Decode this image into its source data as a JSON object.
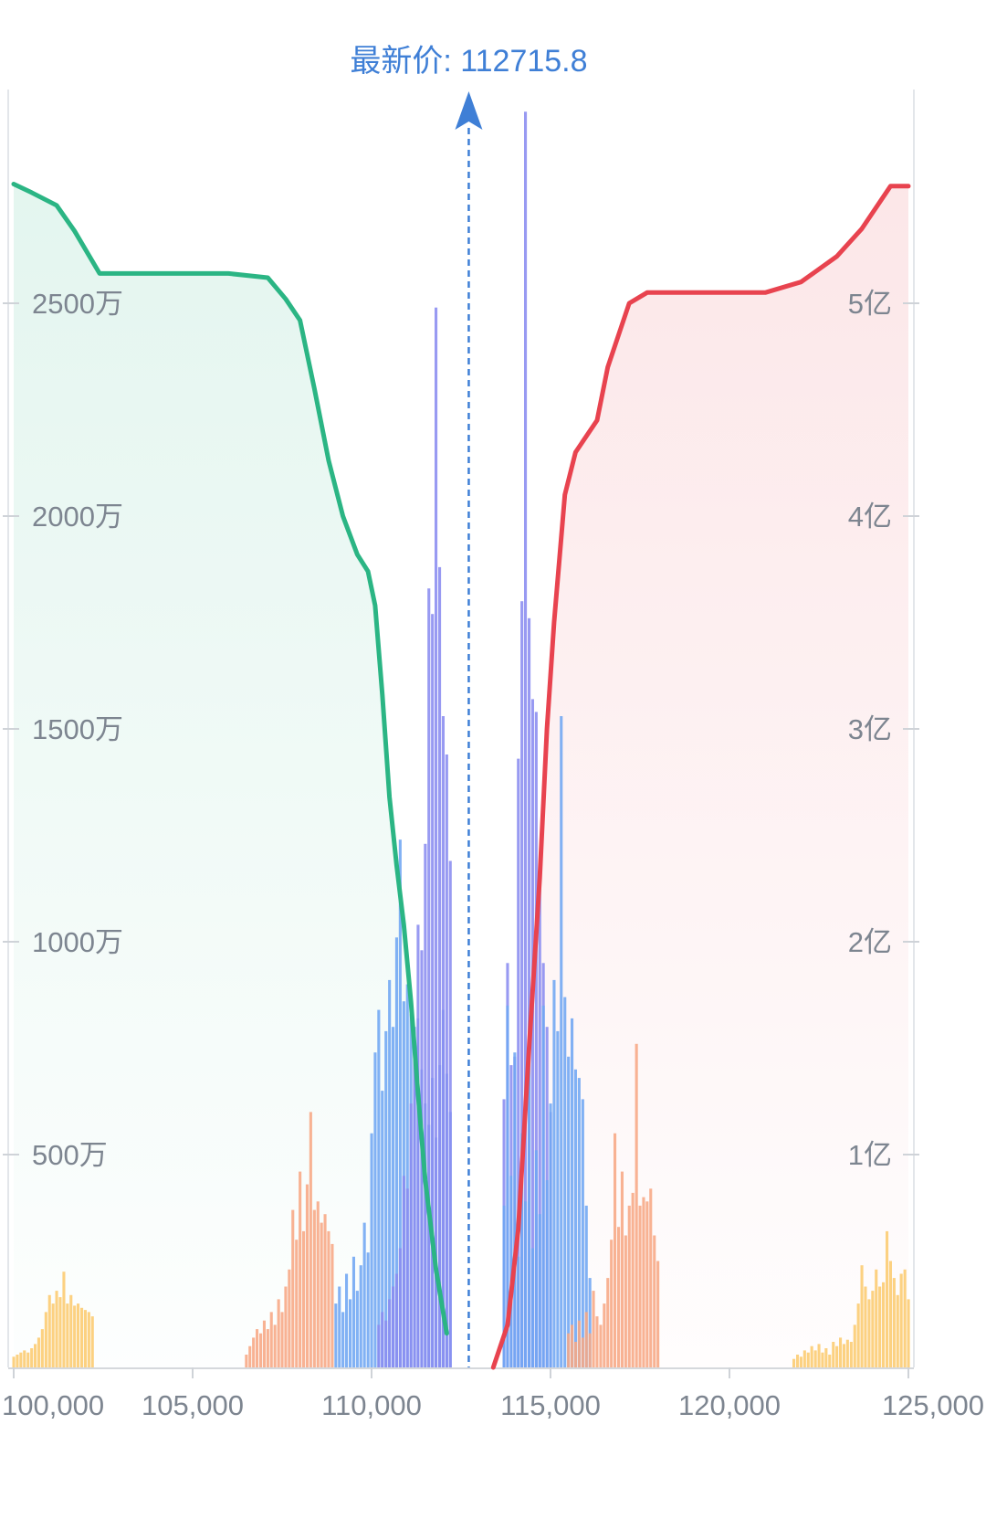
{
  "chart_data": {
    "type": "area",
    "title": "",
    "xlabel": "",
    "ylabel": "",
    "price_marker": {
      "label": "最新价: 112715.8",
      "value": 112715.8
    },
    "xlim": [
      100000,
      125000
    ],
    "x_ticks": [
      {
        "value": 100000,
        "label": "100,000"
      },
      {
        "value": 105000,
        "label": "105,000"
      },
      {
        "value": 110000,
        "label": "110,000"
      },
      {
        "value": 115000,
        "label": "115,000"
      },
      {
        "value": 120000,
        "label": "120,000"
      },
      {
        "value": 125000,
        "label": "125,000"
      }
    ],
    "left_axis": {
      "range": [
        0,
        30000000
      ],
      "ticks": [
        {
          "value": 5000000,
          "label": "500万"
        },
        {
          "value": 10000000,
          "label": "1000万"
        },
        {
          "value": 15000000,
          "label": "1500万"
        },
        {
          "value": 20000000,
          "label": "2000万"
        },
        {
          "value": 25000000,
          "label": "2500万"
        }
      ]
    },
    "right_axis": {
      "range": [
        0,
        600000000
      ],
      "ticks": [
        {
          "value": 100000000,
          "label": "1亿"
        },
        {
          "value": 200000000,
          "label": "2亿"
        },
        {
          "value": 300000000,
          "label": "3亿"
        },
        {
          "value": 400000000,
          "label": "4亿"
        },
        {
          "value": 500000000,
          "label": "5亿"
        }
      ]
    },
    "colors": {
      "bid_line": "#2bb584",
      "ask_line": "#e8434f",
      "marker": "#3f7fd6",
      "bar_violet": "#8a8cf0",
      "bar_blue": "#6fa6f2",
      "bar_orange": "#f7a784",
      "bar_yellow": "#fccb70",
      "grid": "#e3e6ea"
    },
    "series": [
      {
        "side": "bid",
        "axis": "left",
        "points": [
          [
            100000,
            27800000
          ],
          [
            100500,
            27600000
          ],
          [
            101200,
            27300000
          ],
          [
            101700,
            26700000
          ],
          [
            102400,
            25700000
          ],
          [
            106000,
            25700000
          ],
          [
            107100,
            25600000
          ],
          [
            107600,
            25100000
          ],
          [
            108000,
            24600000
          ],
          [
            108400,
            23000000
          ],
          [
            108800,
            21300000
          ],
          [
            109200,
            20000000
          ],
          [
            109600,
            19100000
          ],
          [
            109900,
            18700000
          ],
          [
            110100,
            17900000
          ],
          [
            110300,
            15800000
          ],
          [
            110500,
            13400000
          ],
          [
            110700,
            11800000
          ],
          [
            110900,
            10400000
          ],
          [
            111100,
            8600000
          ],
          [
            111300,
            6400000
          ],
          [
            111500,
            4400000
          ],
          [
            111800,
            2300000
          ],
          [
            112100,
            800000
          ]
        ]
      },
      {
        "side": "ask",
        "axis": "right",
        "points": [
          [
            113400,
            0
          ],
          [
            113800,
            20000000
          ],
          [
            114100,
            65000000
          ],
          [
            114400,
            150000000
          ],
          [
            114700,
            230000000
          ],
          [
            114900,
            300000000
          ],
          [
            115100,
            350000000
          ],
          [
            115400,
            410000000
          ],
          [
            115700,
            430000000
          ],
          [
            116300,
            445000000
          ],
          [
            116600,
            470000000
          ],
          [
            117200,
            500000000
          ],
          [
            117700,
            505000000
          ],
          [
            121000,
            505000000
          ],
          [
            122000,
            510000000
          ],
          [
            123000,
            522000000
          ],
          [
            123700,
            535000000
          ],
          [
            124500,
            555000000
          ],
          [
            125000,
            555000000
          ]
        ]
      }
    ],
    "depth_bars": {
      "unit_axis": "left",
      "bar_spacing": 100,
      "clusters": [
        {
          "color": "bar_yellow",
          "x": [
            100000,
            100100,
            100200,
            100300,
            100400,
            100500,
            100600,
            100700,
            100800,
            100900,
            101000,
            101100,
            101200,
            101300,
            101400,
            101500,
            101600,
            101700,
            101800,
            101900,
            102000,
            102100,
            102200
          ],
          "values": [
            250000,
            300000,
            350000,
            400000,
            350000,
            450000,
            550000,
            700000,
            900000,
            1300000,
            1700000,
            1500000,
            1800000,
            1650000,
            2250000,
            1500000,
            1700000,
            1450000,
            1500000,
            1400000,
            1350000,
            1300000,
            1200000
          ]
        },
        {
          "color": "bar_orange",
          "x": [
            106500,
            106600,
            106700,
            106800,
            106900,
            107000,
            107100,
            107200,
            107300,
            107400,
            107500,
            107600,
            107700,
            107800,
            107900,
            108000,
            108100,
            108200,
            108300,
            108400,
            108500,
            108600,
            108700,
            108800,
            108900
          ],
          "values": [
            300000,
            500000,
            700000,
            900000,
            800000,
            1100000,
            900000,
            1300000,
            1000000,
            1600000,
            1300000,
            1900000,
            2300000,
            3700000,
            3000000,
            4600000,
            3200000,
            4300000,
            6000000,
            3700000,
            3900000,
            3400000,
            3600000,
            3200000,
            2900000
          ]
        },
        {
          "color": "bar_blue",
          "x": [
            109000,
            109100,
            109200,
            109300,
            109400,
            109500,
            109600,
            109700,
            109800,
            109900,
            110000,
            110100,
            110200,
            110300,
            110400,
            110500,
            110600,
            110700,
            110800,
            110900,
            111000,
            111100,
            111200,
            111300,
            111400,
            111500,
            111600,
            111700,
            111800,
            111900,
            112000,
            112100,
            112200
          ],
          "values": [
            1500000,
            1900000,
            1300000,
            2200000,
            1600000,
            2600000,
            1800000,
            2400000,
            3400000,
            2700000,
            5500000,
            7400000,
            8400000,
            6500000,
            7900000,
            9100000,
            8000000,
            10100000,
            12400000,
            8600000,
            9000000,
            8300000,
            7600000,
            8200000,
            7000000,
            6200000,
            5700000,
            6800000,
            5400000,
            7100000,
            8400000,
            6900000,
            6000000
          ]
        },
        {
          "color": "bar_violet",
          "x": [
            110200,
            110300,
            110400,
            110500,
            110600,
            110700,
            110800,
            110900,
            111000,
            111100,
            111200,
            111300,
            111400,
            111500,
            111600,
            111700,
            111800,
            111900,
            112000,
            112100,
            112200
          ],
          "values": [
            1000000,
            1300000,
            1100000,
            1600000,
            1900000,
            2200000,
            2800000,
            4500000,
            4200000,
            6200000,
            8000000,
            10400000,
            9800000,
            12300000,
            18300000,
            17700000,
            24900000,
            18800000,
            15300000,
            14400000,
            11900000
          ]
        },
        {
          "color": "bar_violet",
          "x": [
            113700,
            113800,
            113900,
            114000,
            114100,
            114200,
            114300,
            114400,
            114500,
            114600,
            114700,
            114800,
            114900,
            115000
          ],
          "values": [
            6300000,
            9500000,
            7100000,
            7300000,
            14300000,
            18000000,
            29500000,
            17600000,
            15700000,
            15400000,
            11700000,
            9500000,
            8000000,
            6000000
          ]
        },
        {
          "color": "bar_blue",
          "x": [
            113700,
            113800,
            113900,
            114000,
            114100,
            114200,
            114300,
            114400,
            114500,
            114600,
            114700,
            114800,
            114900,
            115000,
            115100,
            115200,
            115300,
            115400,
            115500,
            115600,
            115700,
            115800,
            115900,
            116000,
            116100
          ],
          "values": [
            3800000,
            8500000,
            4500000,
            7400000,
            2600000,
            5500000,
            3900000,
            7700000,
            2800000,
            5100000,
            3600000,
            8500000,
            4400000,
            6200000,
            9100000,
            7900000,
            15300000,
            8700000,
            7300000,
            8200000,
            7000000,
            6800000,
            6300000,
            3800000,
            2100000
          ]
        },
        {
          "color": "bar_orange",
          "x": [
            115500,
            115600,
            115700,
            115800,
            115900,
            116000,
            116100,
            116200,
            116300,
            116400,
            116500,
            116600,
            116700,
            116800,
            116900,
            117000,
            117100,
            117200,
            117300,
            117400,
            117500,
            117600,
            117700,
            117800,
            117900,
            118000
          ],
          "values": [
            800000,
            1000000,
            600000,
            1100000,
            700000,
            1300000,
            800000,
            1800000,
            1200000,
            1000000,
            1500000,
            2100000,
            3000000,
            5500000,
            3300000,
            4600000,
            3100000,
            3800000,
            4100000,
            7600000,
            3800000,
            4000000,
            3900000,
            4200000,
            3100000,
            2500000
          ]
        },
        {
          "color": "bar_yellow",
          "x": [
            121800,
            121900,
            122000,
            122100,
            122200,
            122300,
            122400,
            122500,
            122600,
            122700,
            122800,
            122900,
            123000,
            123100,
            123200,
            123300,
            123400,
            123500,
            123600,
            123700,
            123800,
            123900,
            124000,
            124100,
            124200,
            124300,
            124400,
            124500,
            124600,
            124700,
            124800,
            124900,
            125000
          ],
          "values": [
            200000,
            300000,
            250000,
            400000,
            350000,
            500000,
            400000,
            550000,
            350000,
            450000,
            300000,
            600000,
            500000,
            700000,
            550000,
            650000,
            600000,
            1000000,
            1500000,
            2400000,
            1900000,
            1600000,
            1800000,
            2300000,
            1900000,
            2000000,
            3200000,
            2500000,
            2100000,
            1700000,
            2200000,
            2300000,
            1600000
          ]
        }
      ]
    }
  }
}
